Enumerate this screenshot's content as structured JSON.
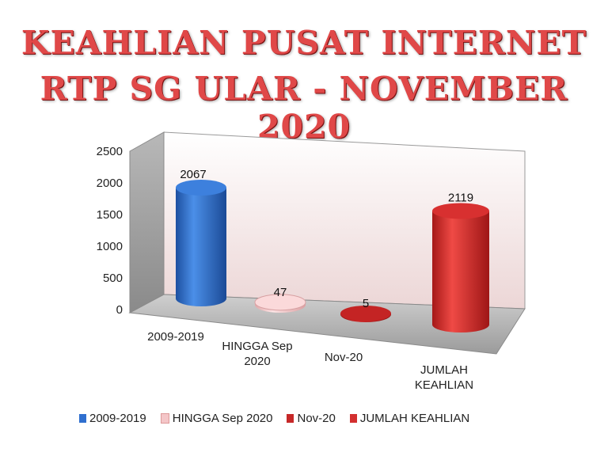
{
  "title_line1": "KEAHLIAN PUSAT INTERNET",
  "title_line2": "RTP SG ULAR - NOVEMBER 2020",
  "chart_data": {
    "type": "bar",
    "title": "KEAHLIAN PUSAT INTERNET RTP SG ULAR - NOVEMBER 2020",
    "categories": [
      "2009-2019",
      "HINGGA Sep 2020",
      "Nov-20",
      "JUMLAH KEAHLIAN"
    ],
    "category_labels": [
      [
        "2009-2019"
      ],
      [
        "HINGGA Sep",
        "2020"
      ],
      [
        "Nov-20"
      ],
      [
        "JUMLAH",
        "KEAHLIAN"
      ]
    ],
    "values": [
      2067,
      47,
      5,
      2119
    ],
    "data_labels": [
      "2067",
      "47",
      "5",
      "2119"
    ],
    "yticks": [
      "0",
      "500",
      "1000",
      "1500",
      "2000",
      "2500"
    ],
    "ylim": [
      0,
      2500
    ],
    "xlabel": "",
    "ylabel": "",
    "grid": false,
    "legend_position": "bottom",
    "series_colors": [
      "#2f6fcf",
      "#f4c6c8",
      "#c62828",
      "#d32f2f"
    ]
  },
  "legend": [
    "2009-2019",
    "HINGGA Sep 2020",
    "Nov-20",
    "JUMLAH KEAHLIAN"
  ]
}
